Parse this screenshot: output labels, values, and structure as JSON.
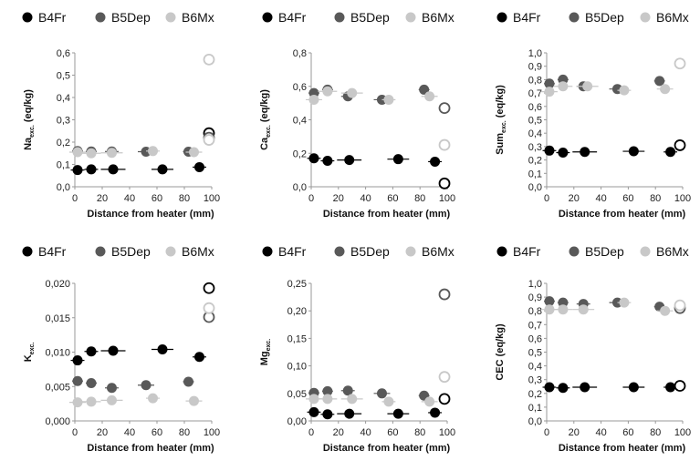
{
  "colors": {
    "B4Fr": "#000000",
    "B5Dep": "#595959",
    "B6Mx": "#c8c8c8"
  },
  "chart_data": [
    {
      "type": "scatter",
      "ylabel_main": "Na",
      "ylabel_sub": "exc.",
      "ylabel_unit": " (eq/kg)",
      "xlabel": "Distance from heater (mm)",
      "xlim": [
        0,
        100
      ],
      "xticks": [
        "0",
        "20",
        "40",
        "60",
        "80",
        "100"
      ],
      "ylim": [
        0,
        0.6
      ],
      "yticks": [
        "0,0",
        "0,1",
        "0,2",
        "0,3",
        "0,4",
        "0,5",
        "0,6"
      ],
      "legend": [
        "B4Fr",
        "B5Dep",
        "B6Mx"
      ],
      "series": [
        {
          "name": "B4Fr",
          "points": [
            [
              2,
              0.075
            ],
            [
              12,
              0.078
            ],
            [
              28,
              0.078
            ],
            [
              64,
              0.078
            ],
            [
              91,
              0.088
            ]
          ],
          "xerr": [
            5,
            5,
            9,
            8,
            5
          ],
          "open": [
            [
              98,
              0.24
            ]
          ]
        },
        {
          "name": "B5Dep",
          "points": [
            [
              2,
              0.16
            ],
            [
              12,
              0.158
            ],
            [
              27,
              0.158
            ],
            [
              52,
              0.157
            ],
            [
              83,
              0.157
            ]
          ],
          "xerr": [
            4,
            4,
            5,
            6,
            4
          ],
          "open": [
            [
              98,
              0.22
            ]
          ]
        },
        {
          "name": "B6Mx",
          "points": [
            [
              2,
              0.155
            ],
            [
              12,
              0.15
            ],
            [
              27,
              0.152
            ],
            [
              57,
              0.16
            ],
            [
              87,
              0.155
            ]
          ],
          "xerr": [
            6,
            7,
            8,
            5,
            6
          ],
          "open": [
            [
              98,
              0.57
            ],
            [
              98,
              0.21
            ]
          ]
        }
      ]
    },
    {
      "type": "scatter",
      "ylabel_main": "Ca",
      "ylabel_sub": "exc.",
      "ylabel_unit": " (eq/kg)",
      "xlabel": "Distance from heater (mm)",
      "xlim": [
        0,
        100
      ],
      "xticks": [
        "0",
        "20",
        "40",
        "60",
        "80",
        "100"
      ],
      "ylim": [
        0,
        0.8
      ],
      "yticks": [
        "0,0",
        "0,2",
        "0,4",
        "0,6",
        "0,8"
      ],
      "legend": [
        "B4Fr",
        "B5Dep",
        "B6Mx"
      ],
      "series": [
        {
          "name": "B4Fr",
          "points": [
            [
              2,
              0.17
            ],
            [
              12,
              0.155
            ],
            [
              28,
              0.16
            ],
            [
              64,
              0.165
            ],
            [
              91,
              0.15
            ]
          ],
          "xerr": [
            5,
            5,
            9,
            8,
            5
          ],
          "open": [
            [
              98,
              0.02
            ]
          ]
        },
        {
          "name": "B5Dep",
          "points": [
            [
              2,
              0.56
            ],
            [
              12,
              0.58
            ],
            [
              27,
              0.54
            ],
            [
              52,
              0.52
            ],
            [
              83,
              0.58
            ]
          ],
          "xerr": [
            4,
            4,
            5,
            6,
            4
          ],
          "open": [
            [
              98,
              0.47
            ]
          ]
        },
        {
          "name": "B6Mx",
          "points": [
            [
              2,
              0.52
            ],
            [
              12,
              0.57
            ],
            [
              30,
              0.56
            ],
            [
              57,
              0.52
            ],
            [
              87,
              0.54
            ]
          ],
          "xerr": [
            6,
            7,
            8,
            5,
            6
          ],
          "open": [
            [
              98,
              0.25
            ]
          ]
        }
      ]
    },
    {
      "type": "scatter",
      "ylabel_main": "Sum",
      "ylabel_sub": "exc.",
      "ylabel_unit": " (eq/kg)",
      "xlabel": "Distance from heater (mm)",
      "xlim": [
        0,
        100
      ],
      "xticks": [
        "0",
        "20",
        "40",
        "60",
        "80",
        "100"
      ],
      "ylim": [
        0,
        1.0
      ],
      "yticks": [
        "0,0",
        "0,1",
        "0,2",
        "0,3",
        "0,4",
        "0,5",
        "0,6",
        "0,7",
        "0,8",
        "0,9",
        "1,0"
      ],
      "legend": [
        "B4Fr",
        "B5Dep",
        "B6Mx"
      ],
      "series": [
        {
          "name": "B4Fr",
          "points": [
            [
              2,
              0.27
            ],
            [
              12,
              0.255
            ],
            [
              28,
              0.26
            ],
            [
              64,
              0.265
            ],
            [
              91,
              0.26
            ]
          ],
          "xerr": [
            5,
            5,
            9,
            8,
            5
          ],
          "open": [
            [
              98,
              0.31
            ]
          ]
        },
        {
          "name": "B5Dep",
          "points": [
            [
              2,
              0.77
            ],
            [
              12,
              0.8
            ],
            [
              27,
              0.75
            ],
            [
              52,
              0.73
            ],
            [
              83,
              0.79
            ]
          ],
          "xerr": [
            4,
            4,
            5,
            6,
            4
          ],
          "open": []
        },
        {
          "name": "B6Mx",
          "points": [
            [
              2,
              0.71
            ],
            [
              12,
              0.75
            ],
            [
              30,
              0.75
            ],
            [
              57,
              0.72
            ],
            [
              87,
              0.73
            ]
          ],
          "xerr": [
            6,
            7,
            8,
            5,
            6
          ],
          "open": [
            [
              98,
              0.92
            ]
          ]
        }
      ]
    },
    {
      "type": "scatter",
      "ylabel_main": "K",
      "ylabel_sub": "exc.",
      "ylabel_unit": "",
      "xlabel": "Distance from heater (mm)",
      "xlim": [
        0,
        100
      ],
      "xticks": [
        "0",
        "20",
        "40",
        "60",
        "80",
        "100"
      ],
      "ylim": [
        0,
        0.02
      ],
      "yticks": [
        "0,000",
        "0,005",
        "0,010",
        "0,015",
        "0,020"
      ],
      "legend": [
        "B4Fr",
        "B5Dep",
        "B6Mx"
      ],
      "series": [
        {
          "name": "B4Fr",
          "points": [
            [
              2,
              0.0088
            ],
            [
              12,
              0.0101
            ],
            [
              28,
              0.0102
            ],
            [
              64,
              0.0104
            ],
            [
              91,
              0.0093
            ]
          ],
          "xerr": [
            5,
            5,
            9,
            8,
            5
          ],
          "open": [
            [
              98,
              0.0193
            ]
          ]
        },
        {
          "name": "B5Dep",
          "points": [
            [
              2,
              0.0058
            ],
            [
              12,
              0.0055
            ],
            [
              27,
              0.0048
            ],
            [
              52,
              0.0052
            ],
            [
              83,
              0.0057
            ]
          ],
          "xerr": [
            4,
            4,
            5,
            6,
            4
          ],
          "open": [
            [
              98,
              0.0151
            ]
          ]
        },
        {
          "name": "B6Mx",
          "points": [
            [
              2,
              0.0027
            ],
            [
              12,
              0.0028
            ],
            [
              27,
              0.003
            ],
            [
              57,
              0.0033
            ],
            [
              87,
              0.0029
            ]
          ],
          "xerr": [
            6,
            7,
            8,
            5,
            6
          ],
          "open": [
            [
              98,
              0.0164
            ]
          ]
        }
      ]
    },
    {
      "type": "scatter",
      "ylabel_main": "Mg",
      "ylabel_sub": "exc.",
      "ylabel_unit": "",
      "xlabel": "Distance from heater (mm)",
      "xlim": [
        0,
        100
      ],
      "xticks": [
        "0",
        "20",
        "40",
        "60",
        "80",
        "100"
      ],
      "ylim": [
        0,
        0.25
      ],
      "yticks": [
        "0,00",
        "0,05",
        "0,10",
        "0,15",
        "0,20",
        "0,25"
      ],
      "legend": [
        "B4Fr",
        "B5Dep",
        "B6Mx"
      ],
      "series": [
        {
          "name": "B4Fr",
          "points": [
            [
              2,
              0.016
            ],
            [
              12,
              0.012
            ],
            [
              28,
              0.013
            ],
            [
              64,
              0.013
            ],
            [
              91,
              0.015
            ]
          ],
          "xerr": [
            5,
            5,
            9,
            8,
            5
          ],
          "open": [
            [
              98,
              0.04
            ]
          ]
        },
        {
          "name": "B5Dep",
          "points": [
            [
              2,
              0.051
            ],
            [
              12,
              0.054
            ],
            [
              27,
              0.055
            ],
            [
              52,
              0.05
            ],
            [
              83,
              0.046
            ]
          ],
          "xerr": [
            4,
            4,
            5,
            6,
            4
          ],
          "open": [
            [
              98,
              0.23
            ]
          ]
        },
        {
          "name": "B6Mx",
          "points": [
            [
              2,
              0.04
            ],
            [
              12,
              0.04
            ],
            [
              30,
              0.04
            ],
            [
              57,
              0.035
            ],
            [
              87,
              0.035
            ]
          ],
          "xerr": [
            6,
            7,
            8,
            5,
            6
          ],
          "open": [
            [
              98,
              0.08
            ]
          ]
        }
      ]
    },
    {
      "type": "scatter",
      "ylabel_main": "CEC",
      "ylabel_sub": "",
      "ylabel_unit": " (eq/kg)",
      "xlabel": "Distance from heater (mm)",
      "xlim": [
        0,
        100
      ],
      "xticks": [
        "0",
        "20",
        "40",
        "60",
        "80",
        "100"
      ],
      "ylim": [
        0,
        1.0
      ],
      "yticks": [
        "0,0",
        "0,1",
        "0,2",
        "0,3",
        "0,4",
        "0,5",
        "0,6",
        "0,7",
        "0,8",
        "0,9",
        "1,0"
      ],
      "legend": [
        "B4Fr",
        "B5Dep",
        "B6Mx"
      ],
      "series": [
        {
          "name": "B4Fr",
          "points": [
            [
              2,
              0.245
            ],
            [
              12,
              0.24
            ],
            [
              28,
              0.245
            ],
            [
              64,
              0.245
            ],
            [
              91,
              0.245
            ]
          ],
          "xerr": [
            5,
            5,
            9,
            8,
            5
          ],
          "open": [
            [
              98,
              0.255
            ]
          ]
        },
        {
          "name": "B5Dep",
          "points": [
            [
              2,
              0.87
            ],
            [
              12,
              0.86
            ],
            [
              27,
              0.85
            ],
            [
              52,
              0.86
            ],
            [
              83,
              0.83
            ]
          ],
          "xerr": [
            4,
            4,
            5,
            6,
            4
          ],
          "open": [
            [
              98,
              0.82
            ]
          ]
        },
        {
          "name": "B6Mx",
          "points": [
            [
              2,
              0.81
            ],
            [
              12,
              0.81
            ],
            [
              27,
              0.81
            ],
            [
              57,
              0.86
            ],
            [
              87,
              0.8
            ]
          ],
          "xerr": [
            6,
            7,
            8,
            5,
            6
          ],
          "open": [
            [
              98,
              0.84
            ]
          ]
        }
      ]
    }
  ]
}
